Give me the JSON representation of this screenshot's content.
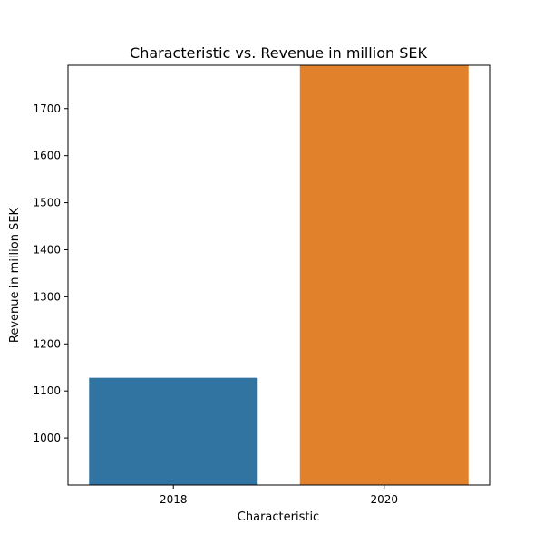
{
  "chart_data": {
    "type": "bar",
    "title": "Characteristic vs. Revenue in million SEK",
    "xlabel": "Characteristic",
    "ylabel": "Revenue in million SEK",
    "categories": [
      "2018",
      "2020"
    ],
    "values": [
      1128,
      1792
    ],
    "colors": [
      "#3274a1",
      "#e1812c"
    ],
    "ylim": [
      900,
      1792
    ],
    "yticks": [
      1000,
      1100,
      1200,
      1300,
      1400,
      1500,
      1600,
      1700
    ],
    "grid": false,
    "legend": "none"
  }
}
